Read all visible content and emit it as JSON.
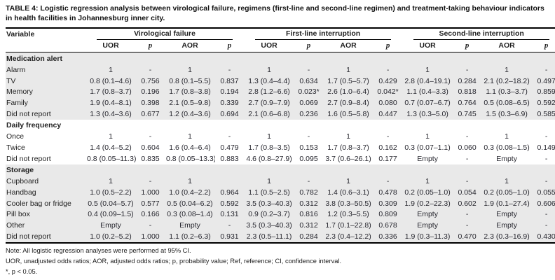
{
  "title": {
    "label": "TABLE 4:",
    "text": "Logistic regression analysis between virological failure, regimens (first-line and second-line regimen) and treatment-taking behaviour indicators in health facilities in Johannesburg inner city."
  },
  "table": {
    "variable_header": "Variable",
    "groups": [
      {
        "label": "Virological failure"
      },
      {
        "label": "First-line interruption"
      },
      {
        "label": "Second-line interruption"
      }
    ],
    "subheaders": [
      "UOR",
      "p",
      "AOR",
      "p"
    ],
    "shade_color": "#e9e9e9",
    "sections": [
      {
        "name": "Medication alert",
        "shaded": true,
        "rows": [
          {
            "variable": "Alarm",
            "cells": [
              "1",
              "-",
              "1",
              "-",
              "1",
              "-",
              "1",
              "-",
              "1",
              "-",
              "1",
              "-"
            ]
          },
          {
            "variable": "TV",
            "cells": [
              "0.8 (0.1–4.6)",
              "0.756",
              "0.8 (0.1–5.5)",
              "0.837",
              "1.3 (0.4–4.4)",
              "0.634",
              "1.7 (0.5–5.7)",
              "0.429",
              "2.8 (0.4–19.1)",
              "0.284",
              "2.1 (0.2–18.2)",
              "0.497"
            ]
          },
          {
            "variable": "Memory",
            "cells": [
              "1.7 (0.8–3.7)",
              "0.196",
              "1.7 (0.8–3.8)",
              "0.194",
              "2.8 (1.2–6.6)",
              "0.023*",
              "2.6 (1.0–6.4)",
              "0.042*",
              "1.1 (0.4–3.3)",
              "0.818",
              "1.1 (0.3–3.7)",
              "0.859"
            ]
          },
          {
            "variable": "Family",
            "cells": [
              "1.9 (0.4–8.1)",
              "0.398",
              "2.1 (0.5–9.8)",
              "0.339",
              "2.7 (0.9–7.9)",
              "0.069",
              "2.7 (0.9–8.4)",
              "0.080",
              "0.7 (0.07–6.7)",
              "0.764",
              "0.5 (0.08–6.5)",
              "0.592"
            ]
          },
          {
            "variable": "Did not report",
            "cells": [
              "1.3 (0.4–3.6)",
              "0.677",
              "1.2 (0.4–3.6)",
              "0.694",
              "2.1 (0.6–6.8)",
              "0.236",
              "1.6 (0.5–5.8)",
              "0.447",
              "1.3 (0.3–5.0)",
              "0.745",
              "1.5 (0.3–6.9)",
              "0.585"
            ]
          }
        ]
      },
      {
        "name": "Daily frequency",
        "shaded": false,
        "rows": [
          {
            "variable": "Once",
            "cells": [
              "1",
              "-",
              "1",
              "-",
              "1",
              "-",
              "1",
              "-",
              "1",
              "-",
              "1",
              "-"
            ]
          },
          {
            "variable": "Twice",
            "cells": [
              "1.4 (0.4–5.2)",
              "0.604",
              "1.6 (0.4–6.4)",
              "0.479",
              "1.7 (0.8–3.5)",
              "0.153",
              "1.7 (0.8–3.7)",
              "0.162",
              "0.3 (0.07–1.1)",
              "0.060",
              "0.3 (0.08–1.5)",
              "0.149"
            ]
          },
          {
            "variable": "Did not report",
            "cells": [
              "0.8 (0.05–11.3)",
              "0.835",
              "0.8 (0.05–13.3)",
              "0.883",
              "4.6 (0.8–27.9)",
              "0.095",
              "3.7 (0.6–26.1)",
              "0.177",
              "Empty",
              "-",
              "Empty",
              "-"
            ]
          }
        ]
      },
      {
        "name": "Storage",
        "shaded": true,
        "rows": [
          {
            "variable": "Cupboard",
            "cells": [
              "1",
              "-",
              "1",
              "",
              "1",
              "-",
              "1",
              "-",
              "1",
              "-",
              "1",
              "-"
            ]
          },
          {
            "variable": "Handbag",
            "cells": [
              "1.0 (0.5–2.2)",
              "1.000",
              "1.0 (0.4–2.2)",
              "0.964",
              "1.1 (0.5–2.5)",
              "0.782",
              "1.4 (0.6–3.1)",
              "0.478",
              "0.2 (0.05–1.0)",
              "0.054",
              "0.2 (0.05–1.0)",
              "0.055"
            ]
          },
          {
            "variable": "Cooler bag or fridge",
            "cells": [
              "0.5 (0.04–5.7)",
              "0.577",
              "0.5 (0.04–6.2)",
              "0.592",
              "3.5 (0.3–40.3)",
              "0.312",
              "3.8 (0.3–50.5)",
              "0.309",
              "1.9 (0.2–22.3)",
              "0.602",
              "1.9 (0.1–27.4)",
              "0.606"
            ]
          },
          {
            "variable": "Pill box",
            "cells": [
              "0.4 (0.09–1.5)",
              "0.166",
              "0.3 (0.08–1.4)",
              "0.131",
              "0.9 (0.2–3.7)",
              "0.816",
              "1.2 (0.3–5.5)",
              "0.809",
              "Empty",
              "-",
              "Empty",
              "-"
            ]
          },
          {
            "variable": "Other",
            "cells": [
              "Empty",
              "-",
              "Empty",
              "-",
              "3.5 (0.3–40.3)",
              "0.312",
              "1.7 (0.1–22.8)",
              "0.678",
              "Empty",
              "-",
              "Empty",
              "-"
            ]
          },
          {
            "variable": "Did not report",
            "cells": [
              "1.0 (0.2–5.2)",
              "1.000",
              "1.1 (0.2–6.3)",
              "0.931",
              "2.3 (0.5–11.1)",
              "0.284",
              "2.3 (0.4–12.2)",
              "0.336",
              "1.9 (0.3–11.3)",
              "0.470",
              "2.3 (0.3–16.9)",
              "0.430"
            ]
          }
        ]
      }
    ]
  },
  "notes": [
    "Note: All logistic regression analyses were performed at 95% CI.",
    "UOR, unadjusted odds ratios; AOR, adjusted odds ratios; p, probability value; Ref, reference; CI, confidence interval.",
    "*, p < 0.05."
  ]
}
